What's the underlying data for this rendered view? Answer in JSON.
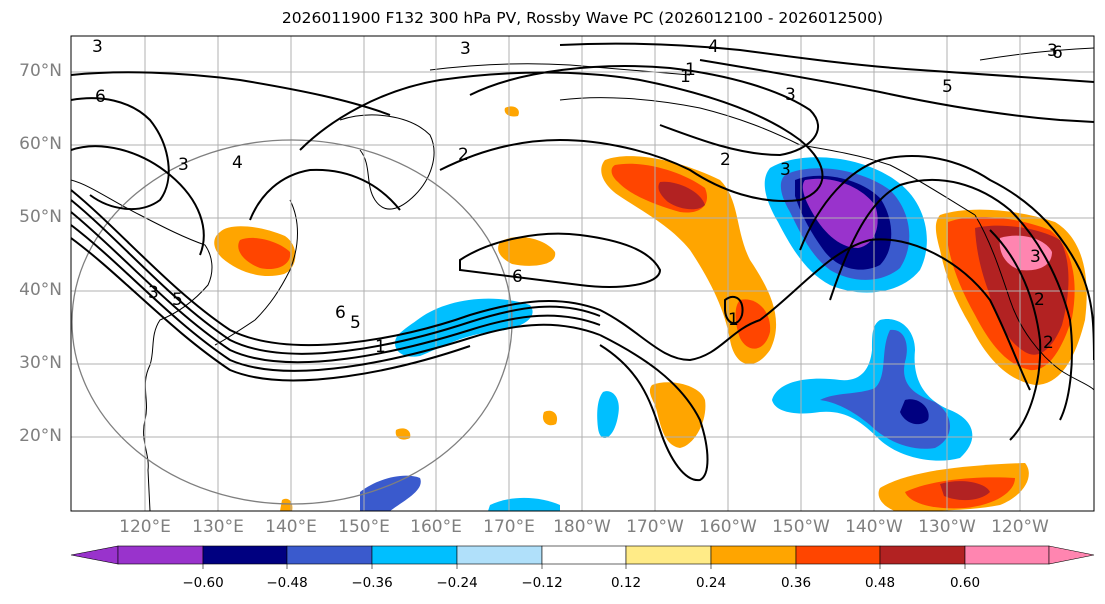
{
  "title": "2026011900 F132 300 hPa PV, Rossby Wave PC (2026012100 - 2026012500)",
  "map": {
    "lat_labels": [
      "70°N",
      "60°N",
      "50°N",
      "40°N",
      "30°N",
      "20°N"
    ],
    "lon_labels": [
      "120°E",
      "130°E",
      "140°E",
      "150°E",
      "160°E",
      "170°E",
      "180°W",
      "170°W",
      "160°W",
      "150°W",
      "140°W",
      "130°W",
      "120°W"
    ],
    "contour_labels": [
      "3",
      "6",
      "4",
      "3",
      "3",
      "2",
      "1",
      "3",
      "5",
      "2",
      "4",
      "1",
      "3",
      "5",
      "6",
      "6",
      "3",
      "5",
      "1",
      "2",
      "2",
      "1",
      "3",
      "3",
      "6"
    ]
  },
  "colorbar": {
    "tick_labels": [
      "−0.60",
      "−0.48",
      "−0.36",
      "−0.24",
      "−0.12",
      "0.12",
      "0.24",
      "0.36",
      "0.48",
      "0.60"
    ],
    "colors": {
      "under": "#9933cc",
      "neg_0.60": "#9933cc",
      "neg_0.48": "#000080",
      "neg_0.36": "#3a5acd",
      "neg_0.24": "#00bfff",
      "neg_0.12": "#b0e0fa",
      "zero": "#ffffff",
      "pos_0.12": "#ffeb87",
      "pos_0.24": "#ffa500",
      "pos_0.36": "#ff4500",
      "pos_0.48": "#b22222",
      "over": "#ff85b0"
    }
  }
}
